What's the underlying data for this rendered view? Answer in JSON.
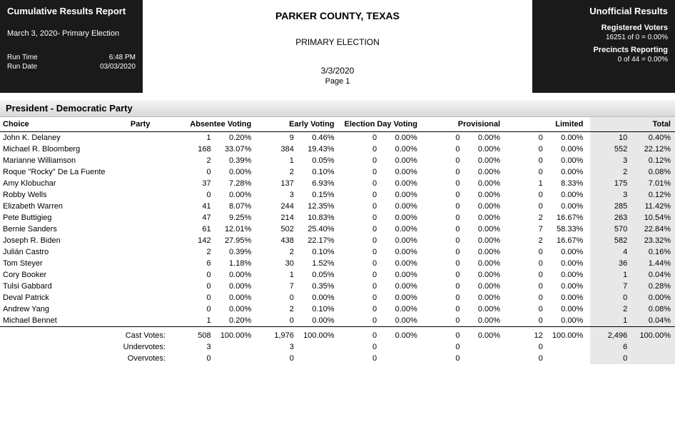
{
  "header": {
    "left": {
      "title": "Cumulative Results Report",
      "subtitle": "March 3, 2020- Primary Election",
      "run_time_label": "Run Time",
      "run_time_value": "6:48 PM",
      "run_date_label": "Run Date",
      "run_date_value": "03/03/2020"
    },
    "center": {
      "jurisdiction": "PARKER COUNTY, TEXAS",
      "election_name": "PRIMARY ELECTION",
      "date": "3/3/2020",
      "page": "Page 1"
    },
    "right": {
      "title": "Unofficial Results",
      "reg_voters_label": "Registered Voters",
      "reg_voters_value": "16251 of 0 = 0.00%",
      "precincts_label": "Precincts Reporting",
      "precincts_value": "0 of 44 = 0.00%"
    }
  },
  "section": {
    "heading": "President - Democratic Party",
    "columns": {
      "choice": "Choice",
      "party": "Party",
      "absentee": "Absentee Voting",
      "early": "Early Voting",
      "eday": "Election Day Voting",
      "provisional": "Provisional",
      "limited": "Limited",
      "total": "Total"
    },
    "rows": [
      {
        "choice": "John K. Delaney",
        "party": "",
        "vals": [
          [
            "1",
            "0.20%"
          ],
          [
            "9",
            "0.46%"
          ],
          [
            "0",
            "0.00%"
          ],
          [
            "0",
            "0.00%"
          ],
          [
            "0",
            "0.00%"
          ],
          [
            "10",
            "0.40%"
          ]
        ]
      },
      {
        "choice": "Michael R. Bloomberg",
        "party": "",
        "vals": [
          [
            "168",
            "33.07%"
          ],
          [
            "384",
            "19.43%"
          ],
          [
            "0",
            "0.00%"
          ],
          [
            "0",
            "0.00%"
          ],
          [
            "0",
            "0.00%"
          ],
          [
            "552",
            "22.12%"
          ]
        ]
      },
      {
        "choice": "Marianne Williamson",
        "party": "",
        "vals": [
          [
            "2",
            "0.39%"
          ],
          [
            "1",
            "0.05%"
          ],
          [
            "0",
            "0.00%"
          ],
          [
            "0",
            "0.00%"
          ],
          [
            "0",
            "0.00%"
          ],
          [
            "3",
            "0.12%"
          ]
        ]
      },
      {
        "choice": "Roque \"Rocky\" De La Fuente",
        "party": "",
        "vals": [
          [
            "0",
            "0.00%"
          ],
          [
            "2",
            "0.10%"
          ],
          [
            "0",
            "0.00%"
          ],
          [
            "0",
            "0.00%"
          ],
          [
            "0",
            "0.00%"
          ],
          [
            "2",
            "0.08%"
          ]
        ]
      },
      {
        "choice": "Amy Klobuchar",
        "party": "",
        "vals": [
          [
            "37",
            "7.28%"
          ],
          [
            "137",
            "6.93%"
          ],
          [
            "0",
            "0.00%"
          ],
          [
            "0",
            "0.00%"
          ],
          [
            "1",
            "8.33%"
          ],
          [
            "175",
            "7.01%"
          ]
        ]
      },
      {
        "choice": "Robby Wells",
        "party": "",
        "vals": [
          [
            "0",
            "0.00%"
          ],
          [
            "3",
            "0.15%"
          ],
          [
            "0",
            "0.00%"
          ],
          [
            "0",
            "0.00%"
          ],
          [
            "0",
            "0.00%"
          ],
          [
            "3",
            "0.12%"
          ]
        ]
      },
      {
        "choice": "Elizabeth Warren",
        "party": "",
        "vals": [
          [
            "41",
            "8.07%"
          ],
          [
            "244",
            "12.35%"
          ],
          [
            "0",
            "0.00%"
          ],
          [
            "0",
            "0.00%"
          ],
          [
            "0",
            "0.00%"
          ],
          [
            "285",
            "11.42%"
          ]
        ]
      },
      {
        "choice": "Pete Buttigieg",
        "party": "",
        "vals": [
          [
            "47",
            "9.25%"
          ],
          [
            "214",
            "10.83%"
          ],
          [
            "0",
            "0.00%"
          ],
          [
            "0",
            "0.00%"
          ],
          [
            "2",
            "16.67%"
          ],
          [
            "263",
            "10.54%"
          ]
        ]
      },
      {
        "choice": "Bernie Sanders",
        "party": "",
        "vals": [
          [
            "61",
            "12.01%"
          ],
          [
            "502",
            "25.40%"
          ],
          [
            "0",
            "0.00%"
          ],
          [
            "0",
            "0.00%"
          ],
          [
            "7",
            "58.33%"
          ],
          [
            "570",
            "22.84%"
          ]
        ]
      },
      {
        "choice": "Joseph R. Biden",
        "party": "",
        "vals": [
          [
            "142",
            "27.95%"
          ],
          [
            "438",
            "22.17%"
          ],
          [
            "0",
            "0.00%"
          ],
          [
            "0",
            "0.00%"
          ],
          [
            "2",
            "16.67%"
          ],
          [
            "582",
            "23.32%"
          ]
        ]
      },
      {
        "choice": "Julián Castro",
        "party": "",
        "vals": [
          [
            "2",
            "0.39%"
          ],
          [
            "2",
            "0.10%"
          ],
          [
            "0",
            "0.00%"
          ],
          [
            "0",
            "0.00%"
          ],
          [
            "0",
            "0.00%"
          ],
          [
            "4",
            "0.16%"
          ]
        ]
      },
      {
        "choice": "Tom Steyer",
        "party": "",
        "vals": [
          [
            "6",
            "1.18%"
          ],
          [
            "30",
            "1.52%"
          ],
          [
            "0",
            "0.00%"
          ],
          [
            "0",
            "0.00%"
          ],
          [
            "0",
            "0.00%"
          ],
          [
            "36",
            "1.44%"
          ]
        ]
      },
      {
        "choice": "Cory Booker",
        "party": "",
        "vals": [
          [
            "0",
            "0.00%"
          ],
          [
            "1",
            "0.05%"
          ],
          [
            "0",
            "0.00%"
          ],
          [
            "0",
            "0.00%"
          ],
          [
            "0",
            "0.00%"
          ],
          [
            "1",
            "0.04%"
          ]
        ]
      },
      {
        "choice": "Tulsi Gabbard",
        "party": "",
        "vals": [
          [
            "0",
            "0.00%"
          ],
          [
            "7",
            "0.35%"
          ],
          [
            "0",
            "0.00%"
          ],
          [
            "0",
            "0.00%"
          ],
          [
            "0",
            "0.00%"
          ],
          [
            "7",
            "0.28%"
          ]
        ]
      },
      {
        "choice": "Deval Patrick",
        "party": "",
        "vals": [
          [
            "0",
            "0.00%"
          ],
          [
            "0",
            "0.00%"
          ],
          [
            "0",
            "0.00%"
          ],
          [
            "0",
            "0.00%"
          ],
          [
            "0",
            "0.00%"
          ],
          [
            "0",
            "0.00%"
          ]
        ]
      },
      {
        "choice": "Andrew Yang",
        "party": "",
        "vals": [
          [
            "0",
            "0.00%"
          ],
          [
            "2",
            "0.10%"
          ],
          [
            "0",
            "0.00%"
          ],
          [
            "0",
            "0.00%"
          ],
          [
            "0",
            "0.00%"
          ],
          [
            "2",
            "0.08%"
          ]
        ]
      },
      {
        "choice": "Michael Bennet",
        "party": "",
        "vals": [
          [
            "1",
            "0.20%"
          ],
          [
            "0",
            "0.00%"
          ],
          [
            "0",
            "0.00%"
          ],
          [
            "0",
            "0.00%"
          ],
          [
            "0",
            "0.00%"
          ],
          [
            "1",
            "0.04%"
          ]
        ]
      }
    ],
    "cast": {
      "label": "Cast Votes:",
      "vals": [
        [
          "508",
          "100.00%"
        ],
        [
          "1,976",
          "100.00%"
        ],
        [
          "0",
          "0.00%"
        ],
        [
          "0",
          "0.00%"
        ],
        [
          "12",
          "100.00%"
        ],
        [
          "2,496",
          "100.00%"
        ]
      ]
    },
    "under": {
      "label": "Undervotes:",
      "vals": [
        "3",
        "3",
        "0",
        "0",
        "0",
        "6"
      ]
    },
    "over": {
      "label": "Overvotes:",
      "vals": [
        "0",
        "0",
        "0",
        "0",
        "0",
        "0"
      ]
    }
  }
}
